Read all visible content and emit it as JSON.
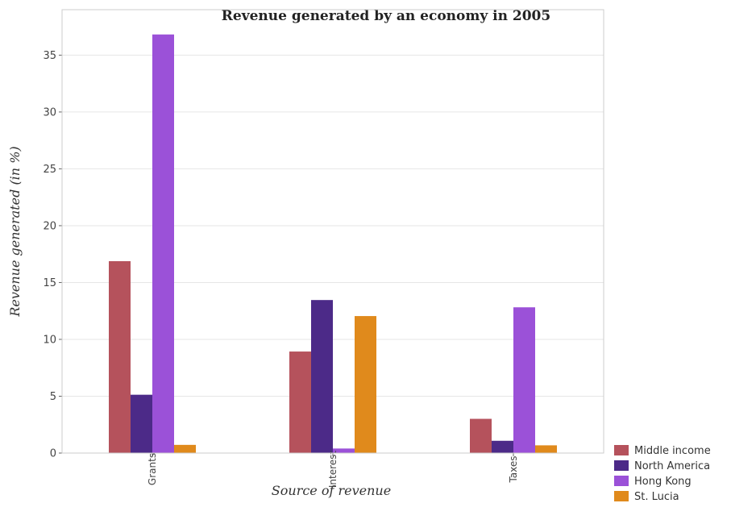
{
  "chart_data": {
    "type": "bar",
    "title": "Revenue generated by an economy in 2005",
    "xlabel": "Source of revenue",
    "ylabel": "Revenue generated (in %)",
    "categories": [
      "Grants",
      "Interest",
      "Taxes"
    ],
    "ylim": [
      0,
      39
    ],
    "yticks": [
      0,
      5,
      10,
      15,
      20,
      25,
      30,
      35
    ],
    "grid": true,
    "legend_position": "bottom-right",
    "series": [
      {
        "name": "Middle income",
        "color": "#b5525c",
        "values": [
          16.88,
          8.93,
          3.01
        ]
      },
      {
        "name": "North America",
        "color": "#4c2a88",
        "values": [
          5.13,
          13.46,
          1.08
        ]
      },
      {
        "name": "Hong Kong",
        "color": "#9b51d8",
        "values": [
          36.82,
          0.4,
          12.82
        ]
      },
      {
        "name": "St. Lucia",
        "color": "#e08a1c",
        "values": [
          0.72,
          12.05,
          0.68
        ]
      }
    ]
  }
}
